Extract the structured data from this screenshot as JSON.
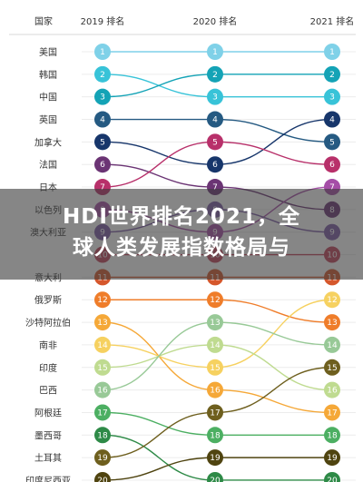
{
  "headline": {
    "line1": "HDI世界排名2021，全",
    "line2": "球人类发展指数格局与"
  },
  "chart_data": {
    "type": "bump",
    "row_header": "国家",
    "columns": [
      "2019 排名",
      "2020 排名",
      "2021 排名"
    ],
    "countries": [
      "美国",
      "韩国",
      "中国",
      "英国",
      "加拿大",
      "法国",
      "日本",
      "以色列",
      "澳大利亚",
      "",
      "意大利",
      "俄罗斯",
      "沙特阿拉伯",
      "南非",
      "印度",
      "巴西",
      "阿根廷",
      "墨西哥",
      "土耳其",
      "印度尼西亚"
    ],
    "series": [
      {
        "ranks": [
          1,
          1,
          1
        ],
        "color": "#7fd1e8"
      },
      {
        "ranks": [
          2,
          3,
          3
        ],
        "color": "#38c3d8"
      },
      {
        "ranks": [
          3,
          2,
          2
        ],
        "color": "#14a3b6"
      },
      {
        "ranks": [
          4,
          4,
          5
        ],
        "color": "#255a82"
      },
      {
        "ranks": [
          5,
          6,
          4
        ],
        "color": "#17366b"
      },
      {
        "ranks": [
          6,
          7,
          8
        ],
        "color": "#6b3474"
      },
      {
        "ranks": [
          7,
          5,
          6
        ],
        "color": "#b8306a"
      },
      {
        "ranks": [
          8,
          9,
          7
        ],
        "color": "#a54ea7"
      },
      {
        "ranks": [
          9,
          8,
          9
        ],
        "color": "#7c5aa6"
      },
      {
        "ranks": [
          10,
          10,
          10
        ],
        "color": "#c3425a"
      },
      {
        "ranks": [
          11,
          11,
          11
        ],
        "color": "#d5572c"
      },
      {
        "ranks": [
          12,
          12,
          13
        ],
        "color": "#ef7d2a"
      },
      {
        "ranks": [
          13,
          16,
          17
        ],
        "color": "#f5a838"
      },
      {
        "ranks": [
          14,
          15,
          12
        ],
        "color": "#f6d160"
      },
      {
        "ranks": [
          15,
          14,
          16
        ],
        "color": "#bfdb90"
      },
      {
        "ranks": [
          16,
          13,
          14
        ],
        "color": "#98c997"
      },
      {
        "ranks": [
          17,
          18,
          18
        ],
        "color": "#4caf62"
      },
      {
        "ranks": [
          18,
          20,
          20
        ],
        "color": "#2e8a47"
      },
      {
        "ranks": [
          19,
          17,
          15
        ],
        "color": "#6e5f1e"
      },
      {
        "ranks": [
          20,
          19,
          19
        ],
        "color": "#4f4410"
      }
    ]
  }
}
